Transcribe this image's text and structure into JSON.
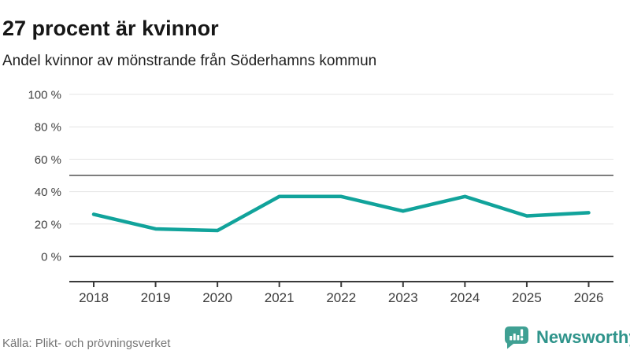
{
  "header": {
    "title": "27 procent är kvinnor",
    "subtitle": "Andel kvinnor av mönstrande från Söderhamns kommun"
  },
  "chart_data": {
    "type": "line",
    "title": "Andel kvinnor av mönstrande från Söderhamns kommun",
    "categories": [
      "2018",
      "2019",
      "2020",
      "2021",
      "2022",
      "2023",
      "2024",
      "2025",
      "2026"
    ],
    "series": [
      {
        "name": "Andel kvinnor",
        "values": [
          26,
          17,
          16,
          37,
          37,
          28,
          37,
          25,
          27
        ]
      }
    ],
    "unit": "%",
    "ylim": [
      0,
      100
    ],
    "yticks": [
      0,
      20,
      40,
      60,
      80,
      100
    ],
    "ytick_suffix": " %",
    "reference_line": 50,
    "grid": true,
    "legend": false,
    "xlabel": "",
    "ylabel": ""
  },
  "footer": {
    "source": "Källa: Plikt- och prövningsverket",
    "logo_text": "Newsworthy"
  },
  "colors": {
    "line": "#11a39b",
    "grid": "#e4e4e4",
    "reference_line": "#7e7e7e",
    "axis": "#3a3a3a",
    "logo_teal": "#3fa093",
    "logo_text": "#2f948b"
  }
}
